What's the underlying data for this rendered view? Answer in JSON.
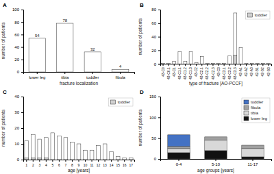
{
  "chart_data": [
    {
      "type": "bar",
      "title": "A",
      "categories": [
        "lower leg",
        "tibia",
        "toddler",
        "fibula"
      ],
      "values": [
        54,
        78,
        32,
        4
      ],
      "color": "#ffffff",
      "xlabel": "fracture localization",
      "ylabel": "number of patients",
      "ylim": [
        0,
        100
      ],
      "yticks": [
        0,
        20,
        40,
        60,
        80,
        100
      ],
      "data_labels": true,
      "grid": false
    },
    {
      "type": "bar",
      "title": "B",
      "categories": [
        "43-C0",
        "43-C0.1",
        "43-C1",
        "43-C1.1",
        "43-C1.2",
        "43-C1.3",
        "43-C2",
        "43-C2.1",
        "43-C2.2",
        "43-C2.3",
        "43-C3",
        "43-C3.1",
        "43-C3.2",
        "43-C3.3",
        "42-A1",
        "42-A2",
        "42-A3",
        "42-B1",
        "42-B2",
        "42-B3"
      ],
      "series": [
        {
          "color": "#ffffff",
          "values": [
            1,
            1,
            4,
            18,
            4,
            18,
            2,
            11,
            1,
            1,
            1,
            1,
            12,
            75,
            24,
            1,
            1,
            1,
            1,
            1
          ]
        },
        {
          "name": "toddler",
          "color": "#d0d0d0",
          "values": [
            0,
            0,
            0,
            0,
            0,
            0,
            0,
            0,
            0,
            0,
            0,
            0,
            0,
            13,
            0,
            0,
            0,
            0,
            0,
            0
          ]
        }
      ],
      "stacked": false,
      "xlabel": "type of fracture [AO-PCCF]",
      "ylabel": "number of patients",
      "ylim": [
        0,
        80
      ],
      "yticks": [
        0,
        20,
        40,
        60,
        80
      ],
      "legend": "upper right",
      "grid": false
    },
    {
      "type": "bar",
      "title": "C",
      "categories": [
        "1",
        "2",
        "3",
        "4",
        "5",
        "6",
        "7",
        "8",
        "9",
        "10",
        "11",
        "12",
        "13",
        "14",
        "15",
        "16",
        "17"
      ],
      "series": [
        {
          "color": "#ffffff",
          "values": [
            12,
            16,
            13,
            14,
            17,
            15,
            14,
            11,
            10,
            6,
            6,
            9,
            10,
            5,
            2,
            1,
            1
          ]
        },
        {
          "name": "toddler",
          "color": "#d0d0d0",
          "values": [
            1,
            1,
            1,
            1,
            0,
            0,
            0,
            0,
            0,
            0,
            0,
            0,
            0,
            0,
            0,
            0,
            0
          ]
        }
      ],
      "stacked": false,
      "xlabel": "age [years]",
      "ylabel": "number of patients",
      "ylim": [
        0,
        40
      ],
      "yticks": [
        0,
        10,
        20,
        30,
        40
      ],
      "legend": "upper right",
      "grid": false
    },
    {
      "type": "bar",
      "title": "D",
      "categories": [
        "0-4",
        "5-10",
        "11-17"
      ],
      "series": [
        {
          "name": "lower leg",
          "color": "#111111",
          "values": [
            15,
            20,
            5
          ]
        },
        {
          "name": "tibia",
          "color": "#d8d8d8",
          "values": [
            10,
            25,
            20
          ]
        },
        {
          "name": "fibula",
          "color": "#a0a0a0",
          "values": [
            5,
            8,
            8
          ]
        },
        {
          "name": "toddler",
          "color": "#4472c4",
          "values": [
            28,
            0,
            0
          ]
        }
      ],
      "stacked": true,
      "xlabel": "age groups [years]",
      "ylabel": "number of patients",
      "ylim": [
        0,
        150
      ],
      "yticks": [
        0,
        50,
        100,
        150
      ],
      "legend": "upper right",
      "grid": false
    }
  ]
}
